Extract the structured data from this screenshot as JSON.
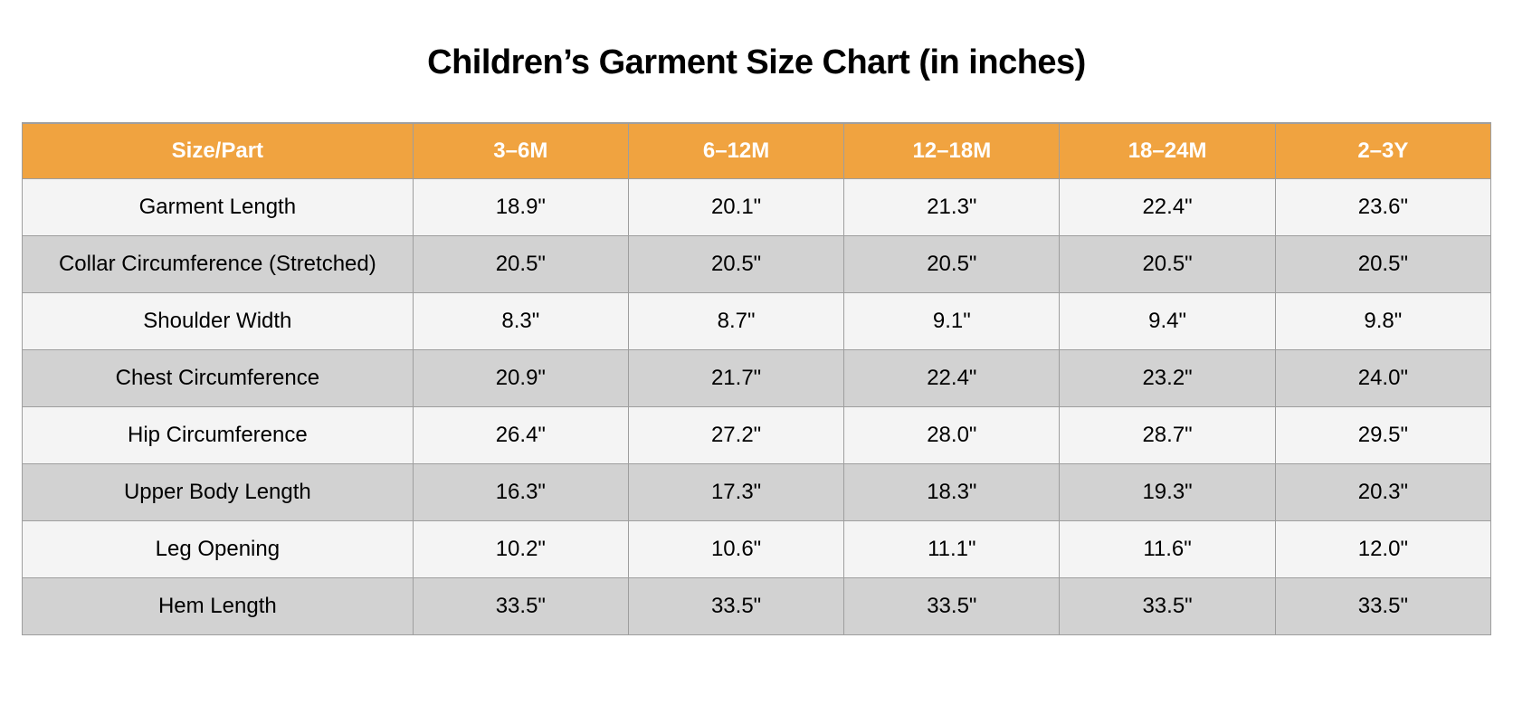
{
  "title": "Children’s Garment Size Chart (in inches)",
  "colors": {
    "header_bg": "#F0A340",
    "header_text": "#FFFFFF",
    "row_light": "#F4F4F4",
    "row_dark": "#D2D2D2",
    "border": "#9E9E9E",
    "title_text": "#000000"
  },
  "chart_data": {
    "type": "table",
    "title": "Children’s Garment Size Chart (in inches)",
    "columns": [
      "Size/Part",
      "3–6M",
      "6–12M",
      "12–18M",
      "18–24M",
      "2–3Y"
    ],
    "rows": [
      {
        "label": "Garment Length",
        "values": [
          "18.9\"",
          "20.1\"",
          "21.3\"",
          "22.4\"",
          "23.6\""
        ]
      },
      {
        "label": "Collar Circumference (Stretched)",
        "values": [
          "20.5\"",
          "20.5\"",
          "20.5\"",
          "20.5\"",
          "20.5\""
        ]
      },
      {
        "label": "Shoulder Width",
        "values": [
          "8.3\"",
          "8.7\"",
          "9.1\"",
          "9.4\"",
          "9.8\""
        ]
      },
      {
        "label": "Chest Circumference",
        "values": [
          "20.9\"",
          "21.7\"",
          "22.4\"",
          "23.2\"",
          "24.0\""
        ]
      },
      {
        "label": "Hip Circumference",
        "values": [
          "26.4\"",
          "27.2\"",
          "28.0\"",
          "28.7\"",
          "29.5\""
        ]
      },
      {
        "label": "Upper Body Length",
        "values": [
          "16.3\"",
          "17.3\"",
          "18.3\"",
          "19.3\"",
          "20.3\""
        ]
      },
      {
        "label": "Leg Opening",
        "values": [
          "10.2\"",
          "10.6\"",
          "11.1\"",
          "11.6\"",
          "12.0\""
        ]
      },
      {
        "label": "Hem Length",
        "values": [
          "33.5\"",
          "33.5\"",
          "33.5\"",
          "33.5\"",
          "33.5\""
        ]
      }
    ],
    "layout": {
      "header_row": true,
      "alternating_rows": true,
      "first_body_row_shade": "light",
      "grid": true
    }
  }
}
